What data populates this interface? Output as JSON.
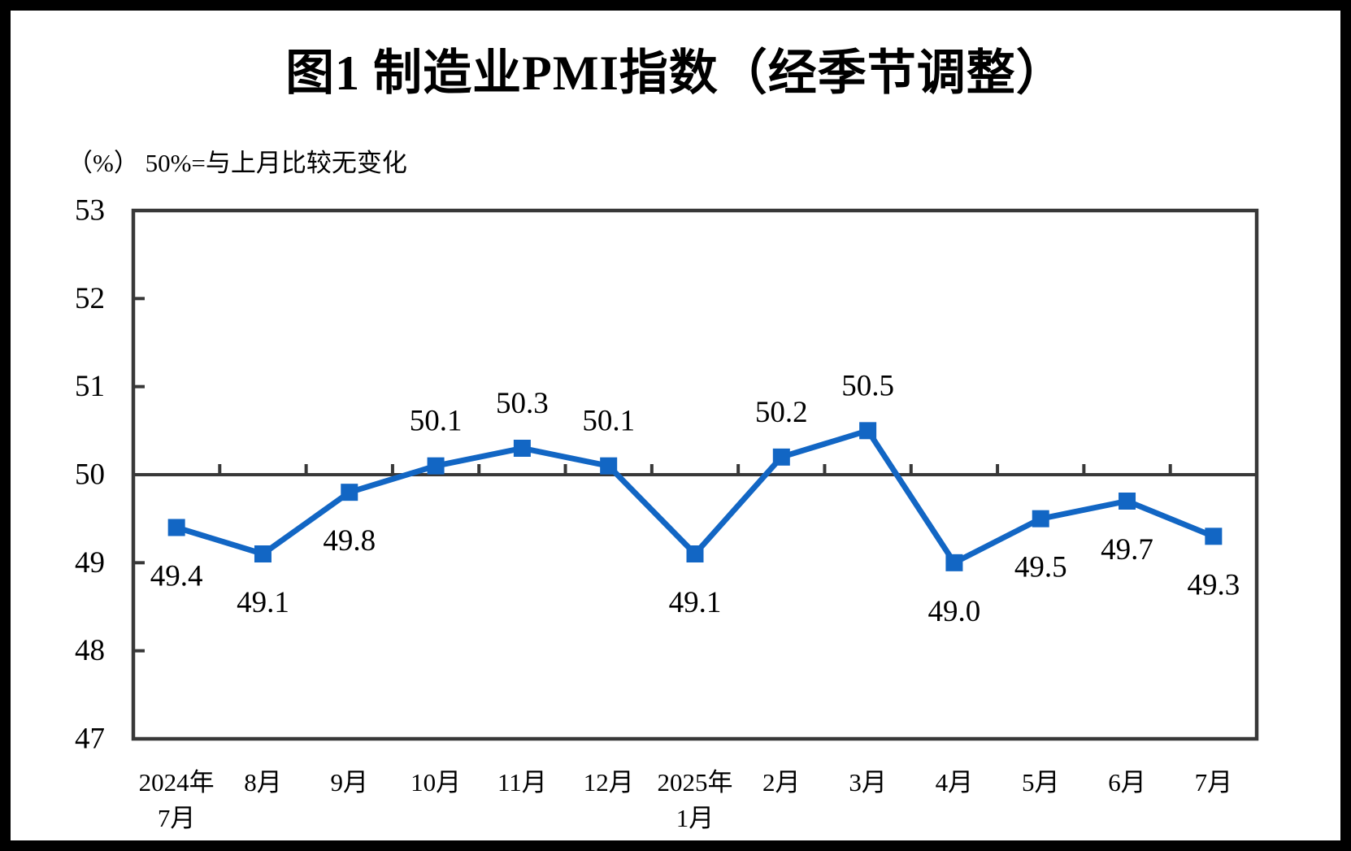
{
  "chart_data": {
    "type": "line",
    "title": "图1  制造业PMI指数（经季节调整）",
    "subtitle": "（%） 50%=与上月比较无变化",
    "categories": [
      [
        "2024年",
        "7月"
      ],
      [
        "8月"
      ],
      [
        "9月"
      ],
      [
        "10月"
      ],
      [
        "11月"
      ],
      [
        "12月"
      ],
      [
        "2025年",
        "1月"
      ],
      [
        "2月"
      ],
      [
        "3月"
      ],
      [
        "4月"
      ],
      [
        "5月"
      ],
      [
        "6月"
      ],
      [
        "7月"
      ]
    ],
    "series": [
      {
        "name": "制造业PMI",
        "values": [
          49.4,
          49.1,
          49.8,
          50.1,
          50.3,
          50.1,
          49.1,
          50.2,
          50.5,
          49.0,
          49.5,
          49.7,
          49.3
        ],
        "labels": [
          "49.4",
          "49.1",
          "49.8",
          "50.1",
          "50.3",
          "50.1",
          "49.1",
          "50.2",
          "50.5",
          "49.0",
          "49.5",
          "49.7",
          "49.3"
        ]
      }
    ],
    "ylim": [
      47,
      53
    ],
    "yticks": [
      47,
      48,
      49,
      50,
      51,
      52,
      53
    ],
    "reference_line": 50,
    "grid": false,
    "legend_position": "none",
    "marker": "square",
    "series_color": "#1266C4",
    "axis_color": "#383838",
    "label_color": "#000000"
  }
}
